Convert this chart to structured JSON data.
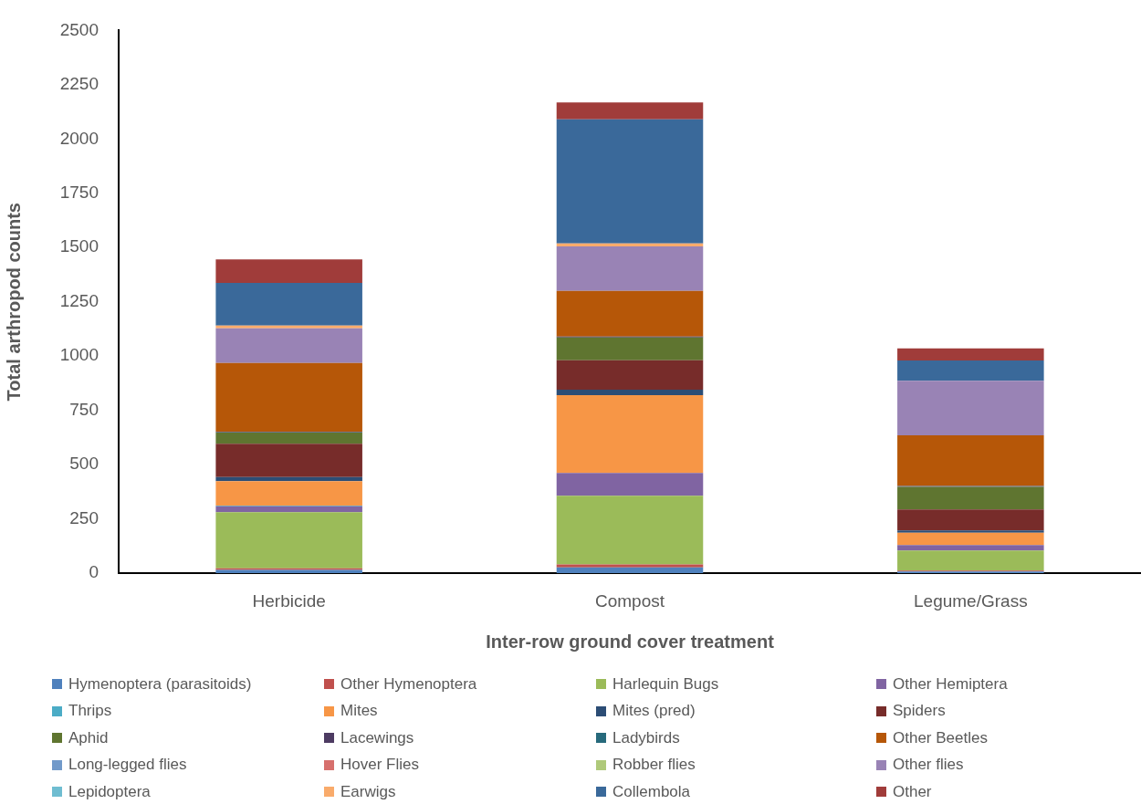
{
  "chart_data": {
    "type": "bar",
    "stacked": true,
    "xlabel": "Inter-row ground cover treatment",
    "ylabel": "Total arthropod counts",
    "categories": [
      "Herbicide",
      "Compost",
      "Legume/Grass"
    ],
    "ylim": [
      0,
      2500
    ],
    "yticks": [
      0,
      250,
      500,
      750,
      1000,
      1250,
      1500,
      1750,
      2000,
      2250,
      2500
    ],
    "grid": false,
    "legend": "bottom",
    "series": [
      {
        "name": "Hymenoptera (parasitoids)",
        "color": "#4f81bd",
        "values": [
          15,
          26,
          7
        ]
      },
      {
        "name": "Other Hymenoptera",
        "color": "#c0504d",
        "values": [
          7,
          14,
          5
        ]
      },
      {
        "name": "Harlequin Bugs",
        "color": "#9bbb59",
        "values": [
          259,
          316,
          92
        ]
      },
      {
        "name": "Other Hemiptera",
        "color": "#8064a2",
        "values": [
          27,
          105,
          25
        ]
      },
      {
        "name": "Thrips",
        "color": "#4bacc6",
        "values": [
          3,
          0,
          0
        ]
      },
      {
        "name": "Mites",
        "color": "#f79646",
        "values": [
          113,
          359,
          57
        ]
      },
      {
        "name": "Mites (pred)",
        "color": "#2c4d75",
        "values": [
          19,
          25,
          11
        ]
      },
      {
        "name": "Spiders",
        "color": "#772c2a",
        "values": [
          153,
          136,
          96
        ]
      },
      {
        "name": "Aphid",
        "color": "#5f7530",
        "values": [
          51,
          105,
          104
        ]
      },
      {
        "name": "Lacewings",
        "color": "#4d3b62",
        "values": [
          3,
          4,
          3
        ]
      },
      {
        "name": "Ladybirds",
        "color": "#276a7c",
        "values": [
          2,
          0,
          2
        ]
      },
      {
        "name": "Other Beetles",
        "color": "#b65708",
        "values": [
          316,
          210,
          233
        ]
      },
      {
        "name": "Long-legged flies",
        "color": "#729aca",
        "values": [
          0,
          0,
          0
        ]
      },
      {
        "name": "Hover Flies",
        "color": "#d7706d",
        "values": [
          0,
          0,
          0
        ]
      },
      {
        "name": "Robber flies",
        "color": "#afc97a",
        "values": [
          0,
          0,
          0
        ]
      },
      {
        "name": "Other flies",
        "color": "#9983b5",
        "values": [
          160,
          205,
          251
        ]
      },
      {
        "name": "Lepidoptera",
        "color": "#6fbdd1",
        "values": [
          0,
          0,
          0
        ]
      },
      {
        "name": "Earwigs",
        "color": "#f9ab6b",
        "values": [
          12,
          14,
          0
        ]
      },
      {
        "name": "Collembola",
        "color": "#3a699a",
        "values": [
          197,
          572,
          94
        ]
      },
      {
        "name": "Other",
        "color": "#a03c3a",
        "values": [
          108,
          78,
          55
        ]
      }
    ]
  }
}
